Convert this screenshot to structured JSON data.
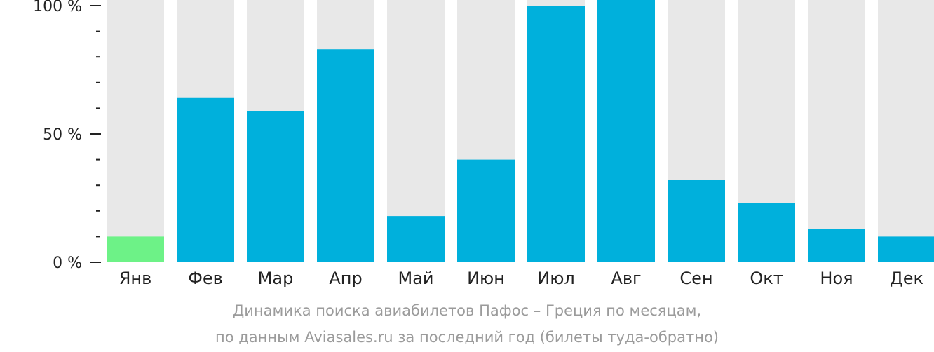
{
  "chart_data": {
    "type": "bar",
    "categories": [
      "Янв",
      "Фев",
      "Мар",
      "Апр",
      "Май",
      "Июн",
      "Июл",
      "Авг",
      "Сен",
      "Окт",
      "Ноя",
      "Дек"
    ],
    "values": [
      10,
      64,
      59,
      83,
      18,
      40,
      100,
      105,
      32,
      23,
      13,
      10
    ],
    "ylim": [
      0,
      100
    ],
    "y_ticks": [
      "0 %",
      "50 %",
      "100 %"
    ],
    "y_tick_values": [
      0,
      50,
      100
    ],
    "y_minor_tick_values": [
      10,
      20,
      30,
      40,
      60,
      70,
      80,
      90
    ],
    "highlight_index": 0,
    "colors": {
      "bar": "#00b0dc",
      "highlight": "#6df287",
      "track": "#e8e8e8",
      "axis": "#222222"
    },
    "caption": [
      "Динамика поиска авиабилетов Пафос – Греция по месяцам,",
      "по данным Aviasales.ru за последний год (билеты туда-обратно)"
    ]
  }
}
